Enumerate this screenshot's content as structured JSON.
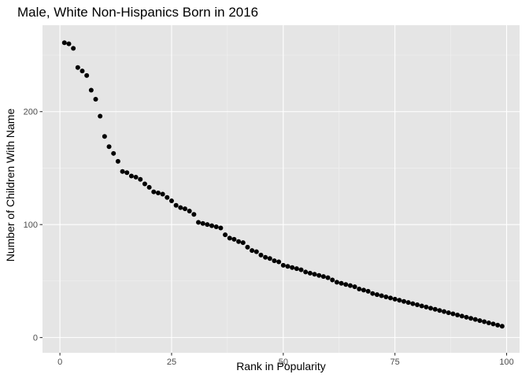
{
  "chart_data": {
    "type": "scatter",
    "title": "Male, White Non-Hispanics Born in 2016",
    "xlabel": "Rank in Popularity",
    "ylabel": "Number of Children With Name",
    "xlim": [
      -3.9,
      102.9
    ],
    "ylim": [
      -13.5,
      276.5
    ],
    "x_ticks": [
      0,
      25,
      50,
      75,
      100
    ],
    "x_tick_labels": [
      "0",
      "25",
      "50",
      "75",
      "100"
    ],
    "y_ticks": [
      0,
      100,
      200
    ],
    "y_tick_labels": [
      "0",
      "100",
      "200"
    ],
    "grid": true,
    "legend": "none",
    "colors": {
      "panel_background": "#e5e5e5",
      "grid_major": "#ffffff",
      "grid_minor": "#f2f2f2",
      "point": "#000000"
    },
    "x": [
      1,
      2,
      3,
      4,
      5,
      6,
      7,
      8,
      9,
      10,
      11,
      12,
      13,
      14,
      15,
      16,
      17,
      18,
      19,
      20,
      21,
      22,
      23,
      24,
      25,
      26,
      27,
      28,
      29,
      30,
      31,
      32,
      33,
      34,
      35,
      36,
      37,
      38,
      39,
      40,
      41,
      42,
      43,
      44,
      45,
      46,
      47,
      48,
      49,
      50,
      51,
      52,
      53,
      54,
      55,
      56,
      57,
      58,
      59,
      60,
      61,
      62,
      63,
      64,
      65,
      66,
      67,
      68,
      69,
      70,
      71,
      72,
      73,
      74,
      75,
      76,
      77,
      78,
      79,
      80,
      81,
      82,
      83,
      84,
      85,
      86,
      87,
      88,
      89,
      90,
      91,
      92,
      93,
      94,
      95,
      96,
      97,
      98,
      99
    ],
    "y": [
      261,
      260,
      256,
      239,
      236,
      232,
      219,
      211,
      196,
      178,
      169,
      163,
      156,
      147,
      146,
      143,
      142,
      140,
      136,
      133,
      129,
      128,
      127,
      124,
      121,
      117,
      115,
      114,
      112,
      109,
      102,
      101,
      100,
      99,
      98,
      97,
      91,
      88,
      87,
      85,
      84,
      80,
      77,
      76,
      73,
      71,
      70,
      68,
      67,
      64,
      63,
      62,
      61,
      60,
      58,
      57,
      56,
      55,
      54,
      53,
      51,
      49,
      48,
      47,
      46,
      45,
      43,
      42,
      41,
      39,
      38,
      37,
      36,
      35,
      34,
      33,
      32,
      31,
      30,
      29,
      28,
      27,
      26,
      25,
      24,
      23,
      22,
      21,
      20,
      19,
      18,
      17,
      16,
      15,
      14,
      13,
      12,
      11,
      10
    ]
  }
}
